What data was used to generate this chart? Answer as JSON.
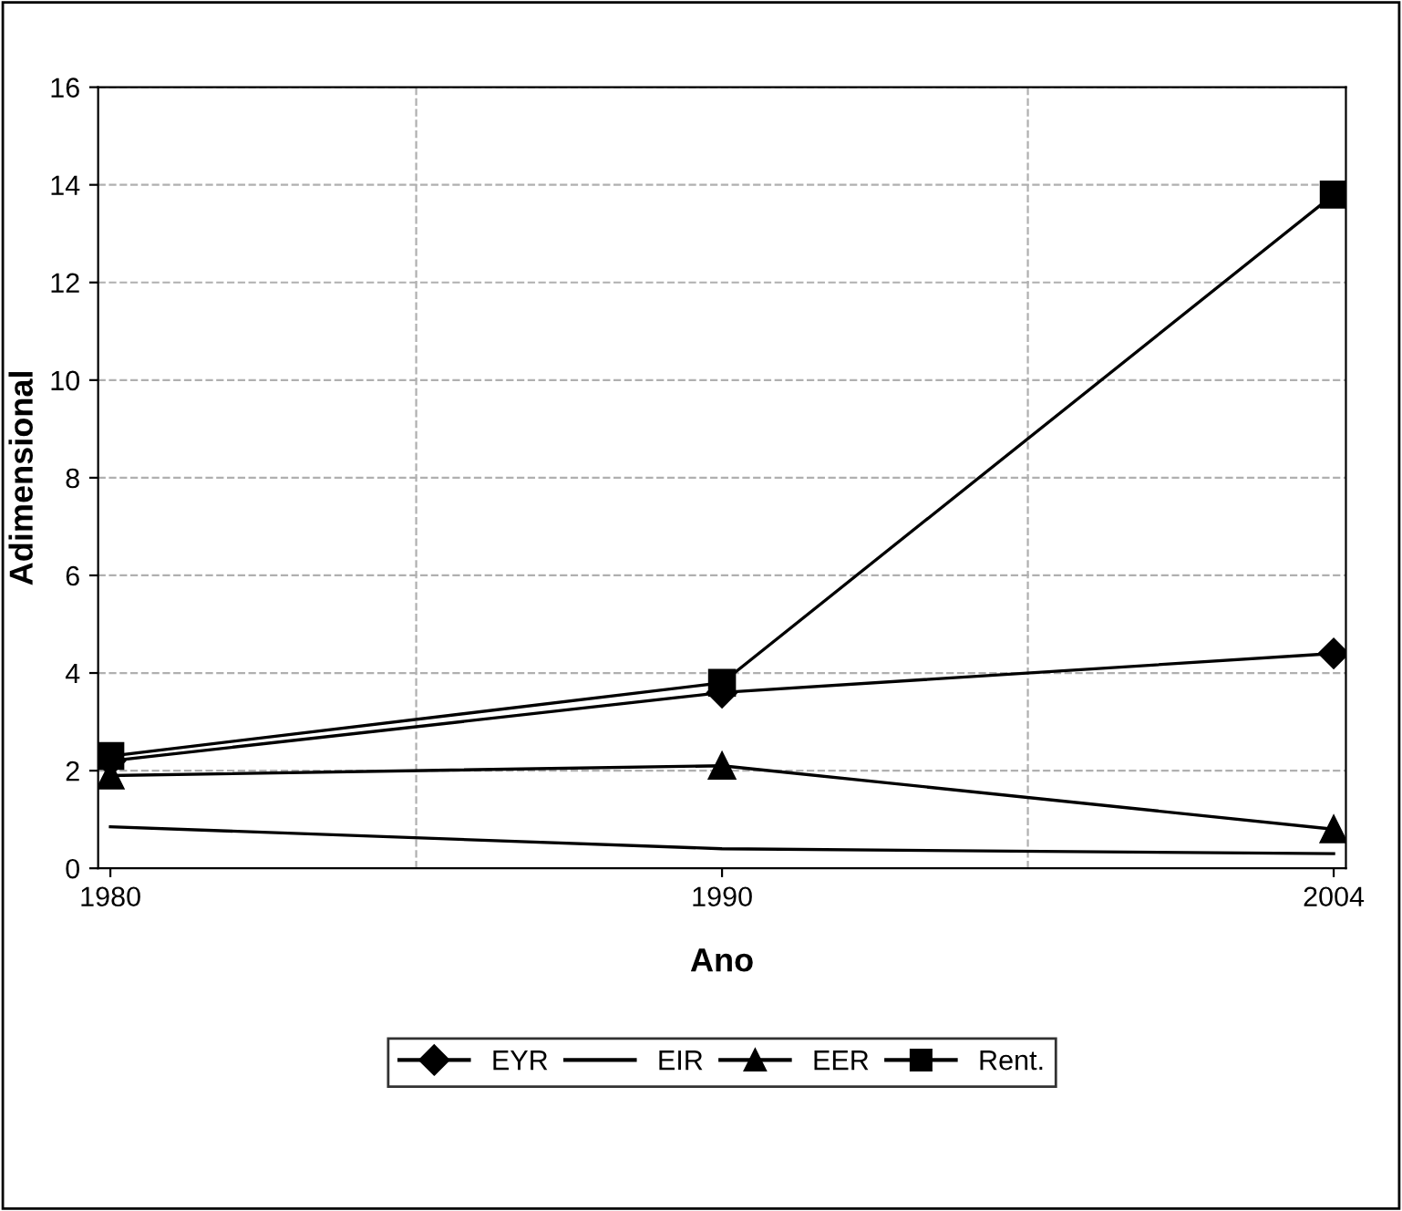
{
  "chart_data": {
    "type": "line",
    "xlabel": "Ano",
    "ylabel": "Adimensional",
    "categories": [
      "1980",
      "1990",
      "2004"
    ],
    "series": [
      {
        "name": "EYR",
        "color": "#000000",
        "marker": "diamond",
        "values": [
          2.2,
          3.6,
          4.4
        ]
      },
      {
        "name": "EIR",
        "color": "#000000",
        "marker": "none",
        "values": [
          0.85,
          0.4,
          0.3
        ]
      },
      {
        "name": "EER",
        "color": "#000000",
        "marker": "triangle",
        "values": [
          1.9,
          2.1,
          0.8
        ]
      },
      {
        "name": "Rent.",
        "color": "#000000",
        "marker": "square",
        "values": [
          2.3,
          3.8,
          13.8
        ]
      }
    ],
    "ylim": [
      0,
      16
    ],
    "yticks": [
      0,
      2,
      4,
      6,
      8,
      10,
      12,
      14,
      16
    ],
    "grid": true,
    "legend": "bottom",
    "line_style": "solid"
  }
}
